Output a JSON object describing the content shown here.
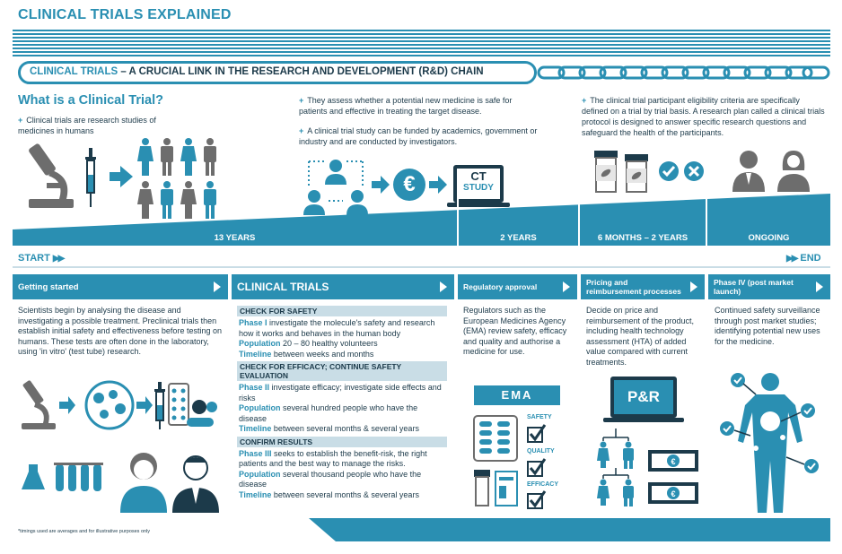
{
  "header": {
    "title": "CLINICAL TRIALS EXPLAINED",
    "banner_highlight": "CLINICAL TRIALS",
    "banner_rest": " – A CRUCIAL LINK IN THE RESEARCH AND DEVELOPMENT (R&D) CHAIN"
  },
  "intro": {
    "heading": "What is a Clinical Trial?",
    "bullet1": "Clinical trials are research studies of medicines in humans",
    "bullet2": "They assess whether a potential new medicine is safe for patients and effective in treating the target disease.",
    "bullet3": "A clinical trial study can be funded by academics, government or industry and are conducted by investigators.",
    "bullet4": "The clinical trial participant eligibility criteria are specifically defined on a trial by trial basis. A research plan called a clinical trials protocol is designed to answer specific research questions and safeguard the health of the participants.",
    "euro_symbol": "€",
    "laptop_text1": "CT",
    "laptop_text2": "STUDY"
  },
  "timeline": {
    "seg1": "13 YEARS",
    "seg2": "2 YEARS",
    "seg3": "6 MONTHS – 2 YEARS",
    "seg4": "ONGOING",
    "start": "START",
    "end": "END"
  },
  "phases": {
    "getting_started": {
      "title": "Getting started",
      "text": "Scientists begin by analysing the disease and investigating a possible treatment. Preclinical trials then establish initial safety and effectiveness before testing on humans. These tests are often done in the laboratory, using 'in vitro' (test tube) research."
    },
    "clinical_trials": {
      "title": "CLINICAL TRIALS",
      "h1": "CHECK FOR SAFETY",
      "p1_label": "Phase I",
      "p1_text": " investigate the molecule's safety and research how it works and behaves in the human body",
      "p1_pop_label": "Population",
      "p1_pop": " 20 – 80 healthy volunteers",
      "p1_time_label": "Timeline",
      "p1_time": " between weeks and months",
      "h2": "CHECK FOR EFFICACY; CONTINUE SAFETY EVALUATION",
      "p2_label": "Phase II",
      "p2_text": " investigate efficacy; investigate side effects and risks",
      "p2_pop_label": "Population",
      "p2_pop": " several hundred people who have the disease",
      "p2_time_label": "Timeline",
      "p2_time": " between several months & several years",
      "h3": "CONFIRM RESULTS",
      "p3_label": "Phase III",
      "p3_text": " seeks to establish the benefit-risk, the right patients and the best way to manage the risks.",
      "p3_pop_label": "Population",
      "p3_pop": " several thousand people who have the disease",
      "p3_time_label": "Timeline",
      "p3_time": " between several months & several years"
    },
    "regulatory": {
      "title": "Regulatory approval",
      "text": "Regulators such as the European Medicines Agency (EMA) review safety, efficacy and quality and authorise a medicine for use.",
      "ema": "EMA",
      "safety": "SAFETY",
      "quality": "QUALITY",
      "efficacy": "EFFICACY"
    },
    "pricing": {
      "title": "Pricing and reimbursement processes",
      "text": "Decide on price and reimbursement of the product, including health technology assessment (HTA) of added value compared with current treatments.",
      "pr": "P&R"
    },
    "phase4": {
      "title": "Phase IV (post market launch)",
      "text": "Continued safety surveillance through post market studies; identifying potential new uses for the medicine."
    }
  },
  "footnote": "*timings used are averages and for illustrative purposes only",
  "colors": {
    "accent": "#2a8fb2",
    "dark": "#1c3a4a",
    "grey": "#7a7a7a",
    "light": "#c9dde6"
  }
}
